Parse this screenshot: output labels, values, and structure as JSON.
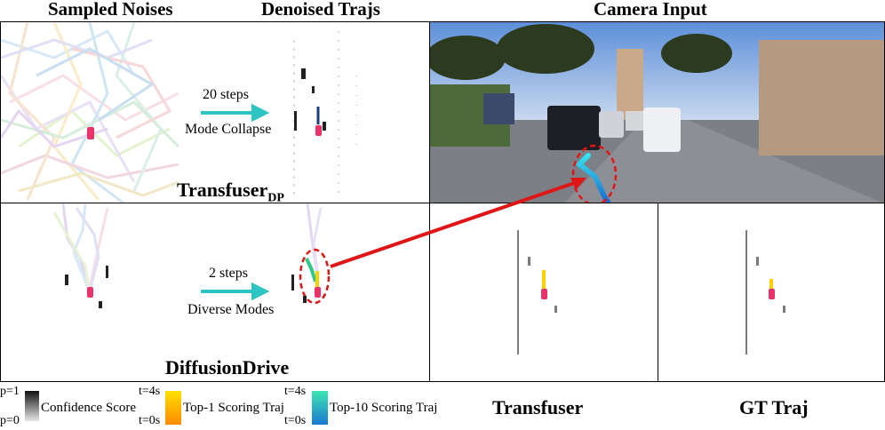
{
  "headers": {
    "sampled_noises": "Sampled Noises",
    "denoised_trajs": "Denoised Trajs",
    "camera_input": "Camera Input"
  },
  "top_row": {
    "steps_label": "20 steps",
    "mode_label": "Mode Collapse",
    "model_name": "Transfuser",
    "model_subscript": "DP"
  },
  "bottom_row": {
    "steps_label": "2 steps",
    "mode_label": "Diverse Modes",
    "model_name": "DiffusionDrive"
  },
  "comparisons": {
    "transfuser": "Transfuser",
    "gt_traj": "GT Traj"
  },
  "legend": {
    "conf_top": "p=1",
    "conf_bottom": "p=0",
    "conf_label": "Confidence Score",
    "top1_t_top": "t=4s",
    "top1_t_bottom": "t=0s",
    "top1_label": "Top-1 Scoring Traj",
    "top10_t_top": "t=4s",
    "top10_t_bottom": "t=0s",
    "top10_label": "Top-10 Scoring Traj"
  },
  "colors": {
    "ego_car": "#e8336b",
    "arrow_teal": "#2ec4c4",
    "highlight_red": "#e01515",
    "top1_gradient": [
      "#ffe000",
      "#ff8a00"
    ],
    "top10_gradient": [
      "#3de6b4",
      "#1a78d0"
    ]
  }
}
